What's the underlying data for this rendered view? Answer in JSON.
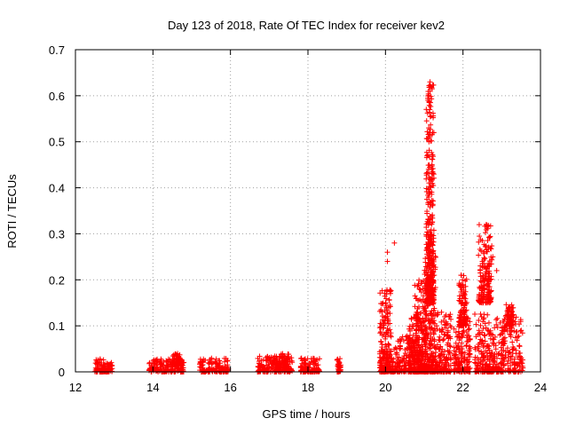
{
  "chart_data": {
    "type": "scatter",
    "title": "Day 123 of 2018, Rate Of TEC Index for receiver kev2",
    "xlabel": "GPS time / hours",
    "ylabel": "ROTI / TECUs",
    "xlim": [
      12,
      24
    ],
    "ylim": [
      0,
      0.7
    ],
    "grid": true,
    "marker": "+",
    "marker_color": "#ff0000",
    "xticks": [
      "12",
      "14",
      "16",
      "18",
      "20",
      "22",
      "24"
    ],
    "yticks": [
      "0",
      "0.1",
      "0.2",
      "0.3",
      "0.4",
      "0.5",
      "0.6",
      "0.7"
    ],
    "series": [
      {
        "name": "kev2",
        "clusters": [
          {
            "x": [
              12.5,
              12.75
            ],
            "y": [
              0.0,
              0.03
            ]
          },
          {
            "x": [
              12.75,
              12.95
            ],
            "y": [
              0.0,
              0.02
            ]
          },
          {
            "x": [
              13.9,
              14.8
            ],
            "y": [
              0.0,
              0.03
            ]
          },
          {
            "x": [
              14.5,
              14.75
            ],
            "y": [
              0.015,
              0.04
            ]
          },
          {
            "x": [
              15.2,
              15.95
            ],
            "y": [
              0.0,
              0.03
            ]
          },
          {
            "x": [
              16.7,
              17.6
            ],
            "y": [
              0.0,
              0.035
            ]
          },
          {
            "x": [
              17.1,
              17.5
            ],
            "y": [
              0.01,
              0.04
            ]
          },
          {
            "x": [
              17.8,
              18.3
            ],
            "y": [
              0.0,
              0.03
            ]
          },
          {
            "x": [
              18.75,
              18.85
            ],
            "y": [
              0.0,
              0.03
            ]
          },
          {
            "x": [
              19.85,
              20.2
            ],
            "y": [
              0.0,
              0.05
            ]
          },
          {
            "x": [
              19.85,
              20.15
            ],
            "y": [
              0.0,
              0.18
            ]
          },
          {
            "x": [
              20.2,
              20.75
            ],
            "y": [
              0.0,
              0.08
            ]
          },
          {
            "x": [
              20.6,
              21.0
            ],
            "y": [
              0.0,
              0.12
            ]
          },
          {
            "x": [
              20.75,
              21.05
            ],
            "y": [
              0.0,
              0.2
            ]
          },
          {
            "x": [
              21.0,
              21.3
            ],
            "y": [
              0.0,
              0.28
            ]
          },
          {
            "x": [
              21.05,
              21.25
            ],
            "y": [
              0.15,
              0.63
            ]
          },
          {
            "x": [
              21.3,
              21.7
            ],
            "y": [
              0.0,
              0.13
            ]
          },
          {
            "x": [
              21.75,
              22.2
            ],
            "y": [
              0.0,
              0.12
            ]
          },
          {
            "x": [
              21.9,
              22.1
            ],
            "y": [
              0.1,
              0.21
            ]
          },
          {
            "x": [
              22.3,
              22.8
            ],
            "y": [
              0.0,
              0.13
            ]
          },
          {
            "x": [
              22.4,
              22.75
            ],
            "y": [
              0.15,
              0.32
            ]
          },
          {
            "x": [
              22.8,
              23.55
            ],
            "y": [
              0.0,
              0.12
            ]
          },
          {
            "x": [
              23.1,
              23.3
            ],
            "y": [
              0.1,
              0.15
            ]
          }
        ],
        "highlights": [
          {
            "x": 21.15,
            "y": 0.63
          },
          {
            "x": 21.17,
            "y": 0.62
          },
          {
            "x": 21.16,
            "y": 0.585
          },
          {
            "x": 21.14,
            "y": 0.52
          },
          {
            "x": 21.12,
            "y": 0.5
          },
          {
            "x": 21.2,
            "y": 0.45
          },
          {
            "x": 21.19,
            "y": 0.44
          },
          {
            "x": 21.22,
            "y": 0.43
          },
          {
            "x": 20.23,
            "y": 0.28
          },
          {
            "x": 20.05,
            "y": 0.26
          },
          {
            "x": 20.05,
            "y": 0.24
          },
          {
            "x": 22.6,
            "y": 0.32
          },
          {
            "x": 22.62,
            "y": 0.315
          },
          {
            "x": 22.77,
            "y": 0.25
          },
          {
            "x": 22.5,
            "y": 0.24
          },
          {
            "x": 22.87,
            "y": 0.22
          },
          {
            "x": 21.95,
            "y": 0.21
          }
        ]
      }
    ]
  }
}
